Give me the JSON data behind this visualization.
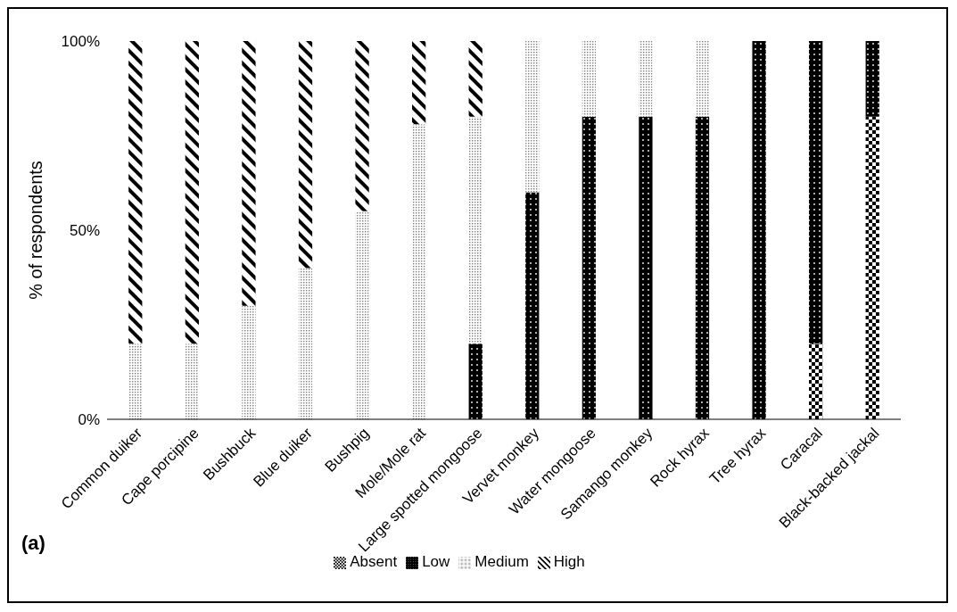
{
  "chart_data": {
    "type": "bar",
    "stacked": true,
    "ylabel": "% of respondents",
    "categories": [
      "Common duiker",
      "Cape porcipine",
      "Bushbuck",
      "Blue duiker",
      "Bushpig",
      "Mole/Mole rat",
      "Large spotted mongoose",
      "Vervet monkey",
      "Water mongoose",
      "Samango monkey",
      "Rock hyrax",
      "Tree hyrax",
      "Caracal",
      "Black-backed jackal"
    ],
    "series": [
      {
        "name": "Absent",
        "color": "#000000",
        "values": [
          0,
          0,
          0,
          0,
          0,
          0,
          0,
          0,
          0,
          0,
          0,
          0,
          20,
          80
        ]
      },
      {
        "name": "Low",
        "color": "#000000",
        "values": [
          0,
          0,
          0,
          0,
          0,
          0,
          20,
          60,
          80,
          80,
          80,
          100,
          80,
          20
        ]
      },
      {
        "name": "Medium",
        "color": "#7f7f7f",
        "values": [
          20,
          20,
          30,
          40,
          55,
          78,
          60,
          40,
          20,
          20,
          20,
          0,
          0,
          0
        ]
      },
      {
        "name": "High",
        "color": "#000000",
        "values": [
          80,
          80,
          70,
          60,
          45,
          22,
          20,
          0,
          0,
          0,
          0,
          0,
          0,
          0
        ]
      }
    ],
    "ylim": [
      0,
      100
    ],
    "yticks": [
      {
        "value": 0,
        "label": "0%"
      },
      {
        "value": 50,
        "label": "50%"
      },
      {
        "value": 100,
        "label": "100%"
      }
    ],
    "legend": "bottom",
    "annotations": [
      "(a)"
    ]
  }
}
